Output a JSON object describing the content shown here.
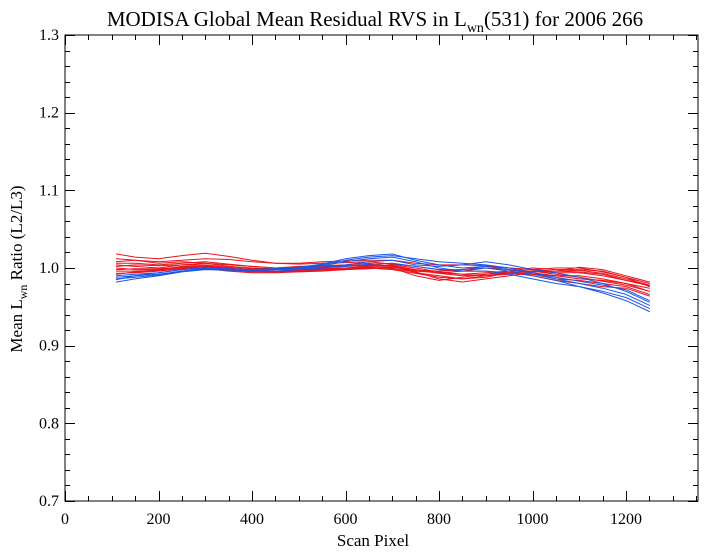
{
  "chart_data": {
    "type": "line",
    "title": {
      "prefix": "MODISA Global Mean Residual RVS in L",
      "subscript": "wn",
      "suffix": "(531) for 2006 266"
    },
    "xlabel": "Scan Pixel",
    "ylabel": {
      "prefix": "Mean L",
      "subscript": "wn",
      "suffix": " Ratio (L2/L3)"
    },
    "xlim": [
      0,
      1354
    ],
    "ylim": [
      0.7,
      1.3
    ],
    "xticks": [
      0,
      200,
      400,
      600,
      800,
      1000,
      1200
    ],
    "xticklabels": [
      "0",
      "200",
      "400",
      "600",
      "800",
      "1000",
      "1200"
    ],
    "xminor_step": 50,
    "yticks": [
      0.7,
      0.8,
      0.9,
      1.0,
      1.1,
      1.2,
      1.3
    ],
    "yticklabels": [
      "0.7",
      "0.8",
      "0.9",
      "1.0",
      "1.1",
      "1.2",
      "1.3"
    ],
    "yminor_step": 0.02,
    "grid": false,
    "x": [
      110,
      150,
      200,
      250,
      300,
      350,
      400,
      450,
      500,
      550,
      600,
      650,
      700,
      750,
      800,
      850,
      900,
      950,
      1000,
      1050,
      1100,
      1150,
      1200,
      1250
    ],
    "colors": {
      "red": "#e8141e",
      "blue": "#1a56e6"
    },
    "series": [
      {
        "color": "red",
        "values": [
          1.018,
          1.014,
          1.012,
          1.016,
          1.019,
          1.015,
          1.01,
          1.006,
          1.006,
          1.008,
          1.009,
          1.01,
          1.01,
          1.006,
          1.004,
          1.004,
          1.003,
          1.0,
          0.998,
          0.996,
          0.995,
          0.992,
          0.984,
          0.977
        ]
      },
      {
        "color": "red",
        "values": [
          1.012,
          1.01,
          1.008,
          1.01,
          1.012,
          1.011,
          1.008,
          1.006,
          1.005,
          1.006,
          1.007,
          1.008,
          1.005,
          1.002,
          0.998,
          0.996,
          0.996,
          0.994,
          0.992,
          0.99,
          0.99,
          0.986,
          0.98,
          0.974
        ]
      },
      {
        "color": "red",
        "values": [
          1.008,
          1.01,
          1.006,
          1.008,
          1.006,
          1.004,
          1.002,
          1.0,
          1.002,
          1.003,
          1.004,
          1.006,
          1.002,
          0.998,
          0.994,
          0.992,
          0.994,
          0.996,
          1.0,
          0.998,
          0.998,
          0.996,
          0.988,
          0.98
        ]
      },
      {
        "color": "red",
        "values": [
          1.004,
          1.002,
          1.0,
          1.004,
          1.006,
          1.002,
          1.0,
          0.999,
          1.0,
          1.001,
          1.002,
          1.003,
          1.004,
          1.0,
          0.995,
          0.992,
          0.99,
          0.992,
          0.995,
          0.996,
          1.001,
          0.998,
          0.99,
          0.982
        ]
      },
      {
        "color": "red",
        "values": [
          1.0,
          0.998,
          0.998,
          1.002,
          1.003,
          1.0,
          0.997,
          0.996,
          0.998,
          0.999,
          1.0,
          1.002,
          1.002,
          0.994,
          0.99,
          0.986,
          0.988,
          0.994,
          0.992,
          0.986,
          0.984,
          0.98,
          0.976,
          0.966
        ]
      },
      {
        "color": "red",
        "values": [
          0.996,
          0.996,
          0.997,
          1.0,
          1.002,
          0.998,
          0.996,
          0.995,
          0.996,
          0.997,
          0.999,
          1.0,
          1.0,
          0.99,
          0.984,
          0.988,
          0.992,
          0.996,
          0.996,
          0.992,
          0.988,
          0.983,
          0.978,
          0.97
        ]
      },
      {
        "color": "red",
        "values": [
          0.993,
          0.994,
          0.996,
          0.999,
          0.999,
          0.996,
          0.994,
          0.994,
          0.995,
          0.996,
          0.998,
          0.999,
          1.001,
          0.996,
          0.994,
          0.996,
          1.0,
          0.998,
          0.996,
          0.994,
          0.994,
          0.99,
          0.984,
          0.978
        ]
      },
      {
        "color": "red",
        "values": [
          1.002,
          1.004,
          1.003,
          1.004,
          1.004,
          1.001,
          0.999,
          0.998,
          0.998,
          0.999,
          1.0,
          1.001,
          0.999,
          0.995,
          0.986,
          0.982,
          0.986,
          0.99,
          0.994,
          0.99,
          0.986,
          0.984,
          0.98,
          0.97
        ]
      },
      {
        "color": "red",
        "values": [
          1.006,
          1.006,
          1.004,
          1.006,
          1.008,
          1.005,
          1.002,
          1.0,
          1.001,
          1.002,
          1.003,
          1.004,
          1.003,
          0.998,
          0.993,
          0.99,
          0.992,
          0.994,
          0.996,
          0.996,
          0.997,
          0.993,
          0.986,
          0.978
        ]
      },
      {
        "color": "red",
        "values": [
          0.998,
          0.999,
          0.999,
          1.001,
          1.002,
          0.999,
          0.997,
          0.996,
          0.997,
          0.998,
          0.999,
          1.0,
          1.001,
          0.997,
          0.996,
          0.998,
          1.002,
          1.0,
          0.998,
          1.0,
          1.0,
          0.995,
          0.988,
          0.976
        ]
      },
      {
        "color": "red",
        "values": [
          0.992,
          0.995,
          0.997,
          1.0,
          1.0,
          0.997,
          0.995,
          0.995,
          0.996,
          0.997,
          0.998,
          1.0,
          0.998,
          0.993,
          0.988,
          0.986,
          0.99,
          0.994,
          0.99,
          0.984,
          0.98,
          0.976,
          0.974,
          0.964
        ]
      },
      {
        "color": "blue",
        "values": [
          0.985,
          0.99,
          0.994,
          0.998,
          1.001,
          0.999,
          0.998,
          0.999,
          1.001,
          1.005,
          1.012,
          1.016,
          1.018,
          1.01,
          1.004,
          1.0,
          1.002,
          0.998,
          0.994,
          0.988,
          0.983,
          0.978,
          0.972,
          0.958
        ]
      },
      {
        "color": "blue",
        "values": [
          0.982,
          0.986,
          0.99,
          0.995,
          0.998,
          0.997,
          0.997,
          0.998,
          1.0,
          1.003,
          1.008,
          1.012,
          1.014,
          1.008,
          1.0,
          0.996,
          0.996,
          0.992,
          0.986,
          0.98,
          0.976,
          0.97,
          0.962,
          0.948
        ]
      },
      {
        "color": "blue",
        "values": [
          0.988,
          0.99,
          0.992,
          0.996,
          0.999,
          0.998,
          0.997,
          0.998,
          0.999,
          1.001,
          1.004,
          1.008,
          1.01,
          1.004,
          1.002,
          1.004,
          1.008,
          1.004,
          0.998,
          0.994,
          0.988,
          0.98,
          0.97,
          0.956
        ]
      },
      {
        "color": "blue",
        "values": [
          0.99,
          0.992,
          0.994,
          0.998,
          1.0,
          0.998,
          0.996,
          0.996,
          0.998,
          1.0,
          1.002,
          1.005,
          1.006,
          1.002,
          0.998,
          0.998,
          1.0,
          0.996,
          0.99,
          0.984,
          0.976,
          0.968,
          0.958,
          0.944
        ]
      },
      {
        "color": "blue",
        "values": [
          0.986,
          0.988,
          0.991,
          0.996,
          0.999,
          0.998,
          0.998,
          0.999,
          1.001,
          1.004,
          1.01,
          1.014,
          1.016,
          1.012,
          1.008,
          1.006,
          1.004,
          1.0,
          0.994,
          0.986,
          0.98,
          0.974,
          0.966,
          0.952
        ]
      }
    ]
  }
}
